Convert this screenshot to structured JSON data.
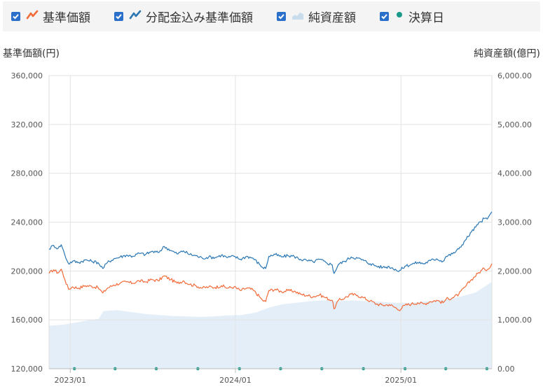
{
  "legend": {
    "items": [
      {
        "label": "基準価額",
        "icon": "orange-line-icon",
        "color": "#f26b3a"
      },
      {
        "label": "分配金込み基準価額",
        "icon": "blue-line-icon",
        "color": "#2a77b4"
      },
      {
        "label": "純資産額",
        "icon": "area-icon",
        "color": "#c8dceb"
      },
      {
        "label": "決算日",
        "icon": "teal-dot-icon",
        "color": "#1b9a8a"
      }
    ]
  },
  "chart_data": {
    "type": "line",
    "ylabel": "基準価額(円)",
    "y2label": "純資産額(億円)",
    "ylim": [
      120000,
      360000
    ],
    "y2lim": [
      0,
      6000
    ],
    "yticks": [
      120000,
      160000,
      200000,
      240000,
      280000,
      320000,
      360000
    ],
    "ytick_labels": [
      "120,000",
      "160,000",
      "200,000",
      "240,000",
      "280,000",
      "320,000",
      "360,000"
    ],
    "y2ticks": [
      0,
      1000,
      2000,
      3000,
      4000,
      5000,
      6000
    ],
    "y2tick_labels": [
      "0.00",
      "1,000.00",
      "2,000.00",
      "3,000.00",
      "4,000.00",
      "5,000.00",
      "6,000.00"
    ],
    "xlim": [
      "2022-11-15",
      "2025-07-21"
    ],
    "xticks": [
      "2023-01-01",
      "2024-01-01",
      "2025-01-01"
    ],
    "xtick_labels": [
      "2023/01",
      "2024/01",
      "2025/01"
    ],
    "grid": true,
    "series": [
      {
        "name": "基準価額",
        "color": "#f26b3a",
        "points": [
          [
            "2022-11-15",
            198000
          ],
          [
            "2022-11-25",
            201000
          ],
          [
            "2022-12-05",
            198500
          ],
          [
            "2022-12-12",
            201500
          ],
          [
            "2022-12-20",
            193000
          ],
          [
            "2022-12-28",
            185000
          ],
          [
            "2023-01-06",
            187000
          ],
          [
            "2023-01-20",
            186000
          ],
          [
            "2023-02-03",
            188000
          ],
          [
            "2023-02-17",
            187500
          ],
          [
            "2023-03-03",
            186500
          ],
          [
            "2023-03-14",
            182000
          ],
          [
            "2023-03-24",
            186000
          ],
          [
            "2023-04-07",
            188500
          ],
          [
            "2023-04-21",
            190000
          ],
          [
            "2023-05-05",
            191000
          ],
          [
            "2023-05-19",
            190000
          ],
          [
            "2023-06-02",
            192000
          ],
          [
            "2023-06-16",
            191000
          ],
          [
            "2023-06-30",
            193000
          ],
          [
            "2023-07-14",
            192000
          ],
          [
            "2023-07-28",
            196000
          ],
          [
            "2023-08-11",
            193000
          ],
          [
            "2023-08-25",
            190000
          ],
          [
            "2023-09-08",
            192000
          ],
          [
            "2023-09-22",
            189000
          ],
          [
            "2023-10-06",
            188000
          ],
          [
            "2023-10-20",
            186000
          ],
          [
            "2023-11-03",
            187000
          ],
          [
            "2023-11-17",
            186500
          ],
          [
            "2023-12-01",
            188000
          ],
          [
            "2023-12-15",
            186000
          ],
          [
            "2023-12-29",
            187000
          ],
          [
            "2024-01-12",
            184000
          ],
          [
            "2024-01-26",
            186000
          ],
          [
            "2024-02-09",
            184500
          ],
          [
            "2024-02-23",
            179000
          ],
          [
            "2024-03-01",
            176000
          ],
          [
            "2024-03-08",
            175000
          ],
          [
            "2024-03-15",
            184000
          ],
          [
            "2024-03-29",
            185000
          ],
          [
            "2024-04-12",
            183000
          ],
          [
            "2024-04-26",
            184000
          ],
          [
            "2024-05-10",
            183500
          ],
          [
            "2024-05-24",
            181000
          ],
          [
            "2024-06-07",
            180000
          ],
          [
            "2024-06-21",
            179000
          ],
          [
            "2024-07-05",
            180500
          ],
          [
            "2024-07-19",
            178000
          ],
          [
            "2024-08-02",
            176000
          ],
          [
            "2024-08-06",
            169000
          ],
          [
            "2024-08-16",
            176000
          ],
          [
            "2024-08-30",
            178000
          ],
          [
            "2024-09-13",
            181000
          ],
          [
            "2024-09-27",
            180000
          ],
          [
            "2024-10-11",
            178000
          ],
          [
            "2024-10-25",
            175500
          ],
          [
            "2024-11-08",
            173000
          ],
          [
            "2024-11-22",
            172000
          ],
          [
            "2024-12-06",
            172500
          ],
          [
            "2024-12-20",
            170000
          ],
          [
            "2024-12-27",
            168000
          ],
          [
            "2025-01-10",
            172000
          ],
          [
            "2025-01-24",
            173000
          ],
          [
            "2025-02-07",
            174000
          ],
          [
            "2025-02-21",
            173000
          ],
          [
            "2025-03-07",
            175000
          ],
          [
            "2025-03-21",
            176000
          ],
          [
            "2025-04-04",
            174000
          ],
          [
            "2025-04-11",
            177000
          ],
          [
            "2025-04-25",
            178000
          ],
          [
            "2025-05-09",
            181000
          ],
          [
            "2025-05-23",
            187000
          ],
          [
            "2025-06-06",
            193000
          ],
          [
            "2025-06-20",
            198000
          ],
          [
            "2025-07-04",
            202000
          ],
          [
            "2025-07-11",
            201000
          ],
          [
            "2025-07-21",
            206000
          ]
        ]
      },
      {
        "name": "分配金込み基準価額",
        "color": "#2a77b4",
        "points": [
          [
            "2022-11-15",
            218000
          ],
          [
            "2022-11-25",
            221000
          ],
          [
            "2022-12-05",
            218500
          ],
          [
            "2022-12-12",
            221500
          ],
          [
            "2022-12-20",
            213000
          ],
          [
            "2022-12-28",
            206000
          ],
          [
            "2023-01-06",
            208000
          ],
          [
            "2023-01-20",
            207000
          ],
          [
            "2023-02-03",
            209000
          ],
          [
            "2023-02-17",
            208000
          ],
          [
            "2023-03-03",
            207000
          ],
          [
            "2023-03-14",
            202000
          ],
          [
            "2023-03-24",
            207000
          ],
          [
            "2023-04-07",
            210000
          ],
          [
            "2023-04-21",
            211500
          ],
          [
            "2023-05-05",
            213000
          ],
          [
            "2023-05-19",
            212000
          ],
          [
            "2023-06-02",
            214500
          ],
          [
            "2023-06-16",
            213500
          ],
          [
            "2023-06-30",
            216000
          ],
          [
            "2023-07-14",
            215000
          ],
          [
            "2023-07-28",
            220000
          ],
          [
            "2023-08-11",
            217000
          ],
          [
            "2023-08-25",
            214000
          ],
          [
            "2023-09-08",
            216500
          ],
          [
            "2023-09-22",
            213500
          ],
          [
            "2023-10-06",
            212500
          ],
          [
            "2023-10-20",
            210500
          ],
          [
            "2023-11-03",
            211500
          ],
          [
            "2023-11-17",
            211000
          ],
          [
            "2023-12-01",
            213000
          ],
          [
            "2023-12-15",
            211000
          ],
          [
            "2023-12-29",
            212000
          ],
          [
            "2024-01-12",
            209500
          ],
          [
            "2024-01-26",
            212000
          ],
          [
            "2024-02-09",
            210500
          ],
          [
            "2024-02-23",
            205500
          ],
          [
            "2024-03-01",
            203000
          ],
          [
            "2024-03-08",
            202000
          ],
          [
            "2024-03-15",
            212000
          ],
          [
            "2024-03-29",
            213500
          ],
          [
            "2024-04-12",
            211500
          ],
          [
            "2024-04-26",
            212500
          ],
          [
            "2024-05-10",
            212000
          ],
          [
            "2024-05-24",
            209500
          ],
          [
            "2024-06-07",
            208500
          ],
          [
            "2024-06-21",
            207500
          ],
          [
            "2024-07-05",
            209500
          ],
          [
            "2024-07-19",
            207000
          ],
          [
            "2024-08-02",
            205000
          ],
          [
            "2024-08-06",
            198000
          ],
          [
            "2024-08-16",
            205500
          ],
          [
            "2024-08-30",
            208000
          ],
          [
            "2024-09-13",
            211500
          ],
          [
            "2024-09-27",
            210500
          ],
          [
            "2024-10-11",
            208500
          ],
          [
            "2024-10-25",
            206000
          ],
          [
            "2024-11-08",
            204000
          ],
          [
            "2024-11-22",
            203000
          ],
          [
            "2024-12-06",
            203500
          ],
          [
            "2024-12-20",
            201500
          ],
          [
            "2024-12-27",
            199500
          ],
          [
            "2025-01-10",
            204000
          ],
          [
            "2025-01-24",
            205500
          ],
          [
            "2025-02-07",
            207000
          ],
          [
            "2025-02-21",
            206000
          ],
          [
            "2025-03-07",
            208500
          ],
          [
            "2025-03-21",
            210000
          ],
          [
            "2025-04-04",
            208000
          ],
          [
            "2025-04-11",
            212000
          ],
          [
            "2025-04-25",
            214000
          ],
          [
            "2025-05-09",
            218000
          ],
          [
            "2025-05-23",
            225000
          ],
          [
            "2025-06-06",
            232000
          ],
          [
            "2025-06-20",
            238000
          ],
          [
            "2025-07-04",
            243000
          ],
          [
            "2025-07-11",
            242500
          ],
          [
            "2025-07-21",
            248500
          ]
        ]
      },
      {
        "name": "純資産額",
        "type": "area",
        "axis": "right",
        "color": "#e3eef8",
        "points": [
          [
            "2022-11-15",
            880
          ],
          [
            "2022-12-15",
            900
          ],
          [
            "2023-01-15",
            950
          ],
          [
            "2023-02-15",
            1000
          ],
          [
            "2023-03-05",
            1020
          ],
          [
            "2023-03-15",
            1180
          ],
          [
            "2023-04-15",
            1200
          ],
          [
            "2023-05-15",
            1160
          ],
          [
            "2023-06-15",
            1120
          ],
          [
            "2023-07-15",
            1100
          ],
          [
            "2023-08-15",
            1080
          ],
          [
            "2023-09-15",
            1070
          ],
          [
            "2023-10-15",
            1060
          ],
          [
            "2023-11-15",
            1070
          ],
          [
            "2023-12-15",
            1090
          ],
          [
            "2024-01-15",
            1100
          ],
          [
            "2024-02-15",
            1150
          ],
          [
            "2024-03-15",
            1250
          ],
          [
            "2024-04-15",
            1320
          ],
          [
            "2024-05-15",
            1350
          ],
          [
            "2024-06-15",
            1380
          ],
          [
            "2024-07-15",
            1400
          ],
          [
            "2024-08-15",
            1380
          ],
          [
            "2024-09-15",
            1400
          ],
          [
            "2024-10-15",
            1380
          ],
          [
            "2024-11-15",
            1370
          ],
          [
            "2024-12-15",
            1350
          ],
          [
            "2025-01-15",
            1340
          ],
          [
            "2025-02-15",
            1370
          ],
          [
            "2025-03-15",
            1390
          ],
          [
            "2025-04-15",
            1420
          ],
          [
            "2025-05-15",
            1480
          ],
          [
            "2025-06-15",
            1560
          ],
          [
            "2025-07-21",
            1780
          ]
        ]
      },
      {
        "name": "決算日",
        "type": "scatter",
        "color": "#1b9a8a",
        "points": [
          [
            "2023-01-10",
            120000
          ],
          [
            "2023-04-10",
            120000
          ],
          [
            "2023-07-10",
            120000
          ],
          [
            "2023-10-10",
            120000
          ],
          [
            "2024-01-10",
            120000
          ],
          [
            "2024-04-10",
            120000
          ],
          [
            "2024-07-10",
            120000
          ],
          [
            "2024-10-10",
            120000
          ],
          [
            "2025-01-10",
            120000
          ],
          [
            "2025-04-10",
            120000
          ],
          [
            "2025-07-10",
            120000
          ]
        ]
      }
    ]
  }
}
